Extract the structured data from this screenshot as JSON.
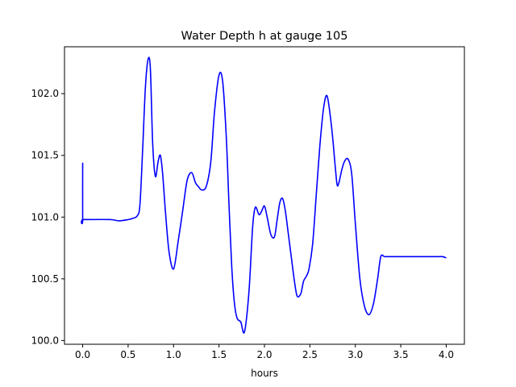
{
  "chart_data": {
    "type": "line",
    "title": "Water Depth h at gauge 105",
    "xlabel": "hours",
    "ylabel": "",
    "xlim": [
      -0.2,
      4.2
    ],
    "ylim": [
      99.97,
      102.38
    ],
    "xticks": [
      0.0,
      0.5,
      1.0,
      1.5,
      2.0,
      2.5,
      3.0,
      3.5,
      4.0
    ],
    "xtick_labels": [
      "0.0",
      "0.5",
      "1.0",
      "1.5",
      "2.0",
      "2.5",
      "3.0",
      "3.5",
      "4.0"
    ],
    "yticks": [
      100.0,
      100.5,
      101.0,
      101.5,
      102.0
    ],
    "ytick_labels": [
      "100.0",
      "100.5",
      "101.0",
      "101.5",
      "102.0"
    ],
    "grid": false,
    "line_color": "#0000ff",
    "series": [
      {
        "x": [
          0.0,
          0.0,
          0.01,
          0.3,
          0.4,
          0.5,
          0.55,
          0.6,
          0.63,
          0.66,
          0.69,
          0.72,
          0.745,
          0.77,
          0.8,
          0.83,
          0.855,
          0.88,
          0.91,
          0.95,
          1.0,
          1.05,
          1.1,
          1.15,
          1.2,
          1.24,
          1.27,
          1.31,
          1.36,
          1.41,
          1.45,
          1.5,
          1.54,
          1.58,
          1.61,
          1.64,
          1.67,
          1.7,
          1.74,
          1.78,
          1.83,
          1.87,
          1.9,
          1.94,
          1.97,
          2.0,
          2.03,
          2.07,
          2.11,
          2.14,
          2.17,
          2.2,
          2.23,
          2.26,
          2.3,
          2.33,
          2.36,
          2.4,
          2.43,
          2.46,
          2.49,
          2.53,
          2.57,
          2.61,
          2.65,
          2.69,
          2.74,
          2.78,
          2.8,
          2.82,
          2.85,
          2.88,
          2.92,
          2.96,
          3.0,
          3.05,
          3.1,
          3.15,
          3.2,
          3.245,
          3.28,
          3.32,
          3.36,
          3.4,
          3.44,
          3.48,
          3.52,
          3.56,
          3.6,
          3.64,
          3.68,
          3.72,
          3.76,
          3.8,
          3.84,
          3.88,
          3.92,
          3.96,
          4.0
        ],
        "y": [
          101.44,
          100.98,
          100.98,
          100.98,
          100.97,
          100.98,
          100.99,
          101.01,
          101.1,
          101.55,
          102.05,
          102.28,
          102.2,
          101.6,
          101.33,
          101.45,
          101.5,
          101.35,
          101.05,
          100.72,
          100.58,
          100.8,
          101.05,
          101.3,
          101.36,
          101.28,
          101.25,
          101.22,
          101.25,
          101.45,
          101.85,
          102.15,
          102.1,
          101.65,
          101.1,
          100.6,
          100.3,
          100.18,
          100.15,
          100.07,
          100.4,
          100.92,
          101.08,
          101.02,
          101.05,
          101.09,
          101.0,
          100.86,
          100.84,
          100.98,
          101.12,
          101.15,
          101.05,
          100.88,
          100.65,
          100.48,
          100.36,
          100.38,
          100.48,
          100.52,
          100.58,
          100.78,
          101.18,
          101.58,
          101.88,
          101.98,
          101.72,
          101.4,
          101.26,
          101.28,
          101.38,
          101.45,
          101.47,
          101.35,
          100.95,
          100.5,
          100.28,
          100.21,
          100.3,
          100.5,
          100.68,
          100.68,
          100.68,
          100.68,
          100.68,
          100.68,
          100.68,
          100.68,
          100.68,
          100.68,
          100.68,
          100.68,
          100.68,
          100.68,
          100.68,
          100.68,
          100.68,
          100.68,
          100.67
        ]
      }
    ]
  }
}
